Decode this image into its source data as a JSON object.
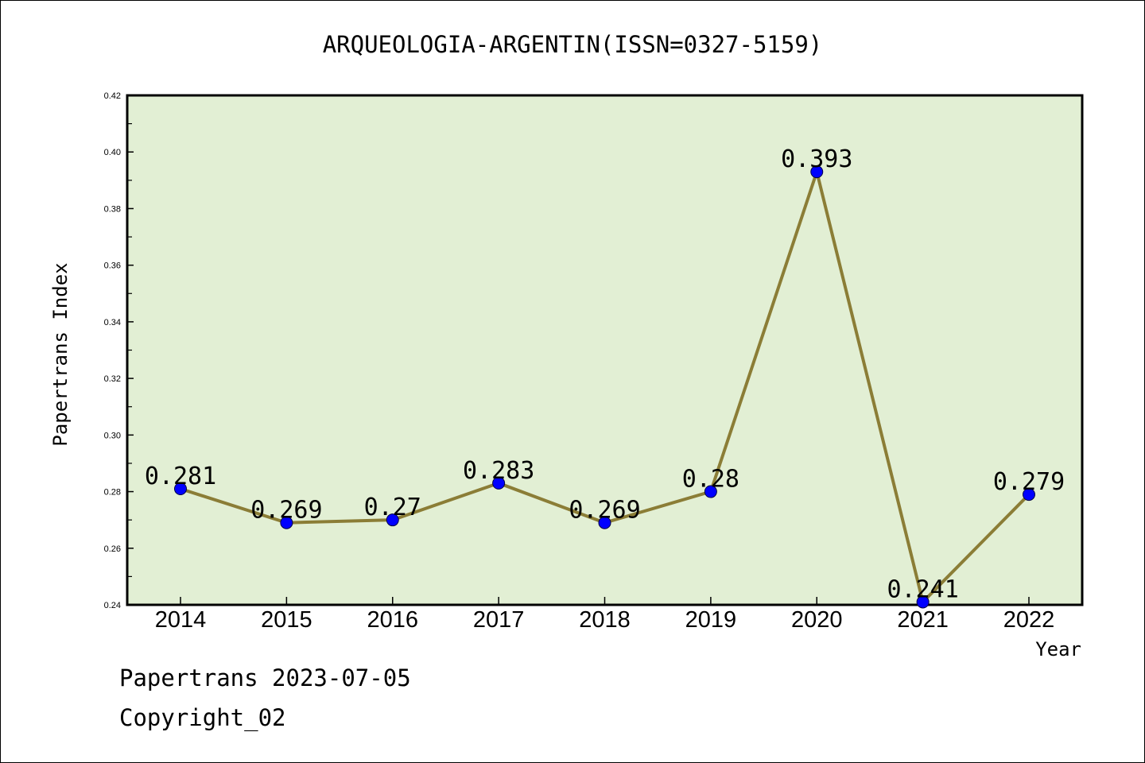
{
  "chart_data": {
    "type": "line",
    "title": "ARQUEOLOGIA-ARGENTIN(ISSN=0327-5159)",
    "xlabel": "Year",
    "ylabel": "Papertrans Index",
    "categories": [
      "2014",
      "2015",
      "2016",
      "2017",
      "2018",
      "2019",
      "2020",
      "2021",
      "2022"
    ],
    "values": [
      0.281,
      0.269,
      0.27,
      0.283,
      0.269,
      0.28,
      0.393,
      0.241,
      0.279
    ],
    "value_labels": [
      "0.281",
      "0.269",
      "0.27",
      "0.283",
      "0.269",
      "0.28",
      "0.393",
      "0.241",
      "0.279"
    ],
    "ylim": [
      0.24,
      0.42
    ],
    "yticks": [
      "0.24",
      "0.26",
      "0.28",
      "0.30",
      "0.32",
      "0.34",
      "0.36",
      "0.38",
      "0.40",
      "0.42"
    ],
    "grid": false,
    "legend": "none",
    "colors": {
      "plot_background": "#e2efd4",
      "line": "#8b7d36",
      "marker": "#0000ff"
    }
  },
  "footer": {
    "line1": "Papertrans 2023-07-05",
    "line2": "Copyright_02"
  }
}
